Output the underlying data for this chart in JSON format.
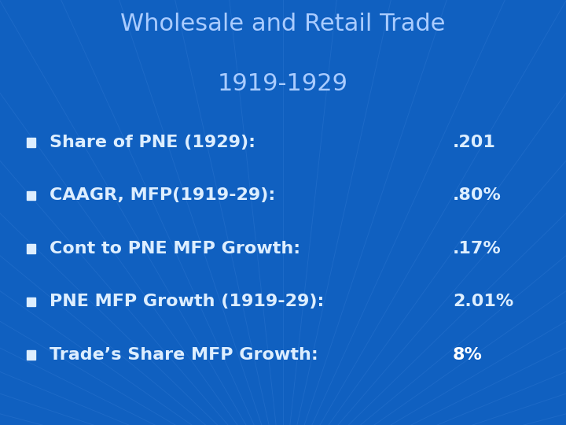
{
  "title_line1": "Wholesale and Retail Trade",
  "title_line2": "1919-1929",
  "title_color": "#aaccff",
  "background_color": "#1060c0",
  "bullet_color": "#ddeeff",
  "text_color": "#ddeeff",
  "last_value_color": "#ffffff",
  "radial_line_color": "#3a80d8",
  "bullet_items": [
    {
      "label": "Share of PNE (1929):",
      "value": ".201",
      "bold_value": false
    },
    {
      "label": "CAAGR, MFP(1919-29):",
      "value": ".80%",
      "bold_value": false
    },
    {
      "label": "Cont to PNE MFP Growth:",
      "value": ".17%",
      "bold_value": false
    },
    {
      "label": "PNE MFP Growth (1919-29):",
      "value": "2.01%",
      "bold_value": false
    },
    {
      "label": "Trade’s Share MFP Growth:",
      "value": "8%",
      "bold_value": true
    }
  ],
  "title_fontsize": 22,
  "bullet_fontsize": 16,
  "figsize": [
    7.2,
    5.4
  ],
  "dpi": 100
}
